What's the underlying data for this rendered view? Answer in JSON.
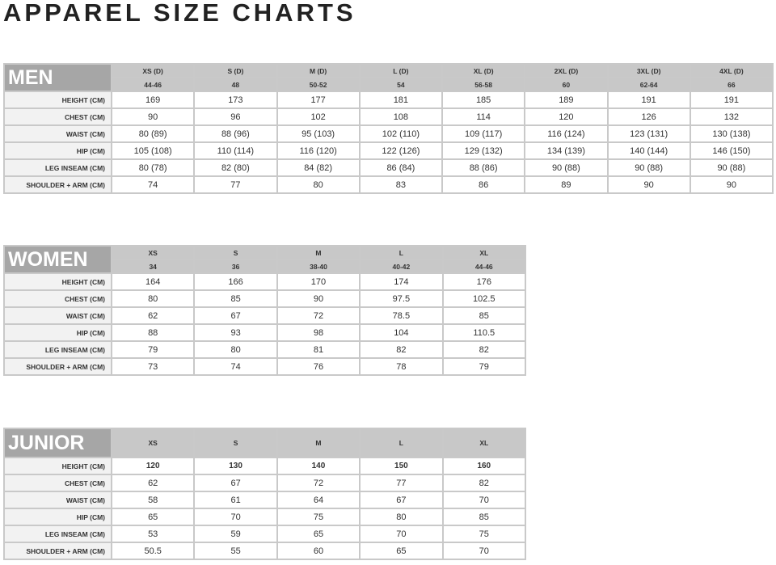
{
  "title": "APPAREL SIZE CHARTS",
  "row_labels": [
    "HEIGHT (CM)",
    "CHEST (CM)",
    "WAIST (CM)",
    "HIP (CM)",
    "LEG INSEAM (CM)",
    "SHOULDER + ARM (CM)"
  ],
  "tables": [
    {
      "id": "men",
      "section": "MEN",
      "sizes": [
        "XS (D)",
        "S (D)",
        "M (D)",
        "L (D)",
        "XL (D)",
        "2XL (D)",
        "3XL (D)",
        "4XL (D)"
      ],
      "sizes_d": [
        "44-46",
        "48",
        "50-52",
        "54",
        "56-58",
        "60",
        "62-64",
        "66"
      ],
      "rows": [
        [
          "169",
          "173",
          "177",
          "181",
          "185",
          "189",
          "191",
          "191"
        ],
        [
          "90",
          "96",
          "102",
          "108",
          "114",
          "120",
          "126",
          "132"
        ],
        [
          "80 (89)",
          "88 (96)",
          "95 (103)",
          "102 (110)",
          "109 (117)",
          "116 (124)",
          "123 (131)",
          "130 (138)"
        ],
        [
          "105 (108)",
          "110 (114)",
          "116 (120)",
          "122 (126)",
          "129 (132)",
          "134 (139)",
          "140 (144)",
          "146 (150)"
        ],
        [
          "80 (78)",
          "82 (80)",
          "84 (82)",
          "86 (84)",
          "88 (86)",
          "90 (88)",
          "90 (88)",
          "90 (88)"
        ],
        [
          "74",
          "77",
          "80",
          "83",
          "86",
          "89",
          "90",
          "90"
        ]
      ]
    },
    {
      "id": "women",
      "section": "WOMEN",
      "sizes": [
        "XS",
        "S",
        "M",
        "L",
        "XL"
      ],
      "sizes_d": [
        "34",
        "36",
        "38-40",
        "40-42",
        "44-46"
      ],
      "rows": [
        [
          "164",
          "166",
          "170",
          "174",
          "176"
        ],
        [
          "80",
          "85",
          "90",
          "97.5",
          "102.5"
        ],
        [
          "62",
          "67",
          "72",
          "78.5",
          "85"
        ],
        [
          "88",
          "93",
          "98",
          "104",
          "110.5"
        ],
        [
          "79",
          "80",
          "81",
          "82",
          "82"
        ],
        [
          "73",
          "74",
          "76",
          "78",
          "79"
        ]
      ]
    },
    {
      "id": "junior",
      "section": "JUNIOR",
      "sizes": [
        "XS",
        "S",
        "M",
        "L",
        "XL"
      ],
      "rows": [
        [
          "120",
          "130",
          "140",
          "150",
          "160"
        ],
        [
          "62",
          "67",
          "72",
          "77",
          "82"
        ],
        [
          "58",
          "61",
          "64",
          "67",
          "70"
        ],
        [
          "65",
          "70",
          "75",
          "80",
          "85"
        ],
        [
          "53",
          "59",
          "65",
          "70",
          "75"
        ],
        [
          "50.5",
          "55",
          "60",
          "65",
          "70"
        ]
      ]
    }
  ]
}
